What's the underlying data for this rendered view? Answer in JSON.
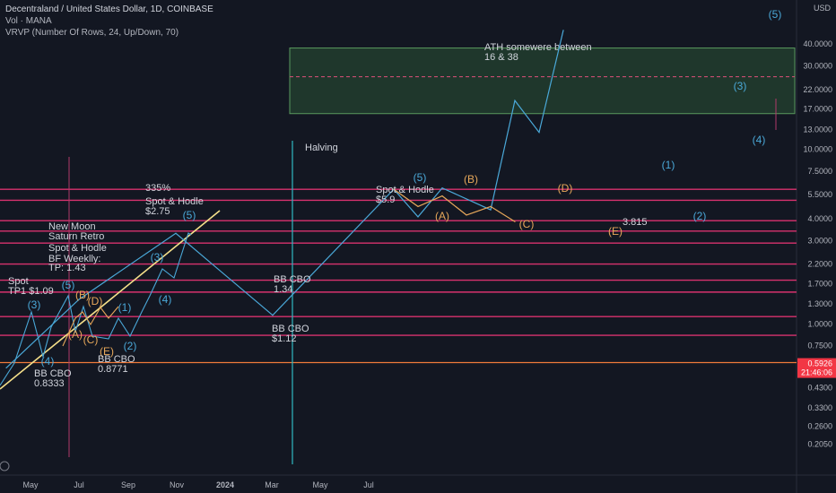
{
  "header": {
    "symbol_line": "Decentraland / United States Dollar, 1D, COINBASE",
    "indicator_1": "Vol · MANA",
    "indicator_2": "VRVP (Number Of Rows, 24, Up/Down, 70)"
  },
  "chart_data": {
    "type": "line",
    "y_scale": "log",
    "ylabel": "USD",
    "y_ticks": [
      "40.0000",
      "30.0000",
      "22.0000",
      "17.0000",
      "13.0000",
      "10.0000",
      "7.5000",
      "5.5000",
      "4.0000",
      "3.0000",
      "2.2000",
      "1.7000",
      "1.3000",
      "1.0000",
      "0.7500",
      "0.5926",
      "0.4300",
      "0.3300",
      "0.2600",
      "0.2050"
    ],
    "current_price": "0.5926",
    "countdown": "21:46:06",
    "x_ticks": [
      "May",
      "Jul",
      "Sep",
      "Nov",
      "2024",
      "Mar",
      "May",
      "Jul"
    ],
    "horizontal_levels": [
      5.9,
      5.1,
      3.9,
      3.4,
      2.9,
      2.2,
      1.78,
      1.52,
      1.1,
      0.86,
      0.6
    ],
    "zone": {
      "low": 16,
      "high": 38,
      "mid": 26,
      "label_1": "ATH somewere between",
      "label_2": "16 & 38"
    },
    "vertical_markers": [
      "",
      "Halving"
    ],
    "series": [
      {
        "color": "#4aa8d8",
        "points": [
          [
            "Apr 2023",
            0.56
          ],
          [
            "Jul 2023",
            1.38
          ],
          [
            "Nov 2023",
            3.3
          ],
          [
            "Mar 2024",
            1.12
          ],
          [
            "Aug 2024",
            5.9
          ],
          [
            "Sep 2024",
            4.1
          ],
          [
            "Oct 2024",
            6.0
          ],
          [
            "Dec 2024",
            4.5
          ],
          [
            "Jan 2025",
            19.0
          ],
          [
            "Feb 2025",
            12.5
          ],
          [
            "Mar 2025",
            48.0
          ]
        ]
      },
      {
        "color": "#e6a75a",
        "points": [
          [
            "Aug 2024",
            5.9
          ],
          [
            "Sep 2024",
            4.7
          ],
          [
            "Oct 2024",
            5.4
          ],
          [
            "Nov 2024",
            4.2
          ],
          [
            "Dec 2024",
            4.7
          ],
          [
            "Jan 2025",
            3.85
          ]
        ]
      }
    ],
    "annotations": [
      {
        "text": "(5)",
        "color": "#4aa8d8"
      },
      {
        "text": "(3)",
        "color": "#4aa8d8"
      },
      {
        "text": "(4)",
        "color": "#4aa8d8"
      },
      {
        "text": "(1)",
        "color": "#4aa8d8"
      },
      {
        "text": "(2)",
        "color": "#4aa8d8"
      },
      {
        "text": "(5)",
        "color": "#4aa8d8"
      },
      {
        "text": "(B)",
        "color": "#e6a75a"
      },
      {
        "text": "(D)",
        "color": "#e6a75a"
      },
      {
        "text": "(A)",
        "color": "#e6a75a"
      },
      {
        "text": "(C)",
        "color": "#e6a75a"
      },
      {
        "text": "(E)",
        "color": "#e6a75a"
      },
      {
        "text": "3.815",
        "color": "#d1d4dc"
      },
      {
        "text": "Spot & Hodle",
        "color": "#d1d4dc"
      },
      {
        "text": "$5.9",
        "color": "#d1d4dc"
      },
      {
        "text": "Halving",
        "color": "#d1d4dc"
      },
      {
        "text": "335%",
        "color": "#d1d4dc"
      },
      {
        "text": "Spot & Hodle",
        "color": "#d1d4dc"
      },
      {
        "text": "$2.75",
        "color": "#d1d4dc"
      },
      {
        "text": "(5)",
        "color": "#4aa8d8"
      },
      {
        "text": "New Moon",
        "color": "#d1d4dc"
      },
      {
        "text": "Saturn Retro",
        "color": "#d1d4dc"
      },
      {
        "text": "Spot & Hodle",
        "color": "#d1d4dc"
      },
      {
        "text": "BF Weeklly:",
        "color": "#d1d4dc"
      },
      {
        "text": "TP: 1.43",
        "color": "#d1d4dc"
      },
      {
        "text": "(3)",
        "color": "#4aa8d8"
      },
      {
        "text": "(4)",
        "color": "#4aa8d8"
      },
      {
        "text": "(1)",
        "color": "#4aa8d8"
      },
      {
        "text": "(2)",
        "color": "#4aa8d8"
      },
      {
        "text": "BB CBO",
        "color": "#d1d4dc"
      },
      {
        "text": "1.34",
        "color": "#d1d4dc"
      },
      {
        "text": "BB CBO",
        "color": "#d1d4dc"
      },
      {
        "text": "$1.12",
        "color": "#d1d4dc"
      },
      {
        "text": "Spot",
        "color": "#d1d4dc"
      },
      {
        "text": "TP1 $1.09",
        "color": "#d1d4dc"
      },
      {
        "text": "(3)",
        "color": "#4aa8d8"
      },
      {
        "text": "(5)",
        "color": "#4aa8d8"
      },
      {
        "text": "(B)",
        "color": "#e6a75a"
      },
      {
        "text": "(D)",
        "color": "#e6a75a"
      },
      {
        "text": "(A)",
        "color": "#e6a75a"
      },
      {
        "text": "(C)",
        "color": "#e6a75a"
      },
      {
        "text": "(E)",
        "color": "#e6a75a"
      },
      {
        "text": "(4)",
        "color": "#4aa8d8"
      },
      {
        "text": "BB CBO",
        "color": "#d1d4dc"
      },
      {
        "text": "0.8333",
        "color": "#d1d4dc"
      },
      {
        "text": "BB CBO",
        "color": "#d1d4dc"
      },
      {
        "text": "0.8771",
        "color": "#d1d4dc"
      }
    ]
  }
}
